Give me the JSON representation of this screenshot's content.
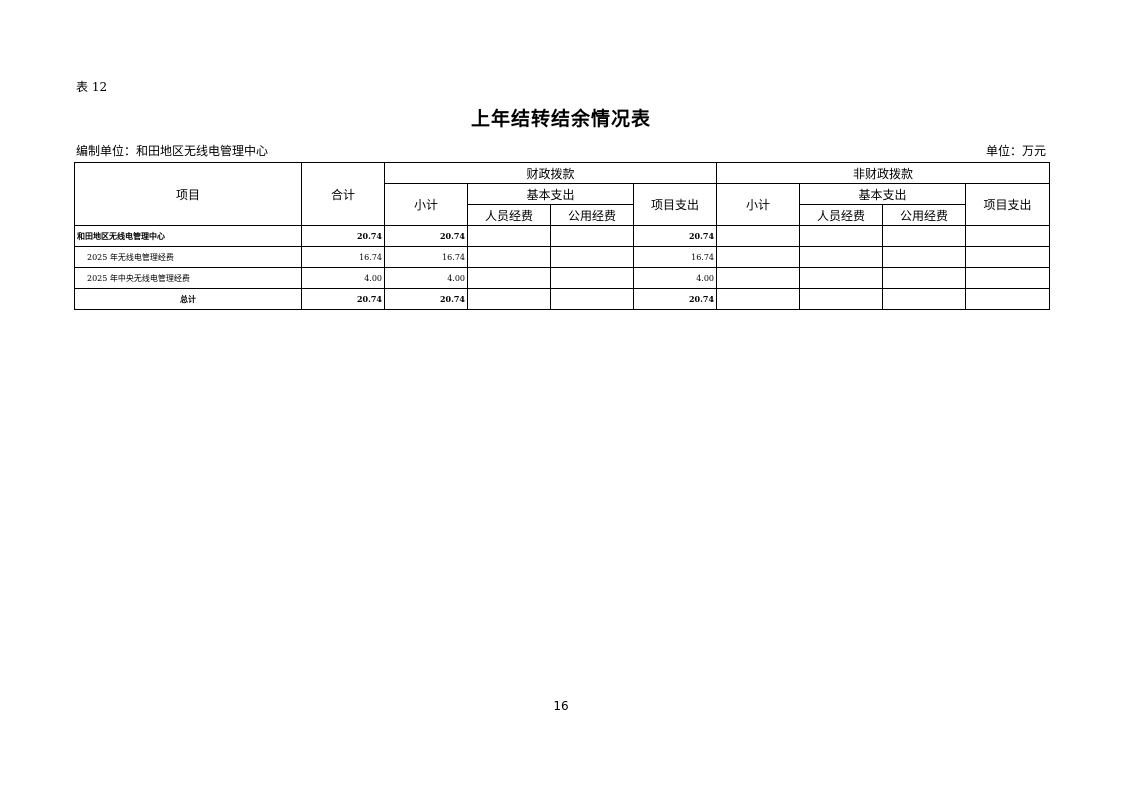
{
  "table_label": "表 12",
  "title": "上年结转结余情况表",
  "compiling_unit": "编制单位：和田地区无线电管理中心",
  "unit": "单位：万元",
  "headers": {
    "item": "项目",
    "total": "合计",
    "fiscal": "财政拨款",
    "non_fiscal": "非财政拨款",
    "subtotal": "小计",
    "basic": "基本支出",
    "personnel": "人员经费",
    "public": "公用经费",
    "project": "项目支出"
  },
  "rows": [
    {
      "name": "和田地区无线电管理中心",
      "total": "20.74",
      "f_sub": "20.74",
      "f_personnel": "",
      "f_public": "",
      "f_project": "20.74",
      "n_sub": "",
      "n_personnel": "",
      "n_public": "",
      "n_project": ""
    },
    {
      "name": "2025 年无线电管理经费",
      "total": "16.74",
      "f_sub": "16.74",
      "f_personnel": "",
      "f_public": "",
      "f_project": "16.74",
      "n_sub": "",
      "n_personnel": "",
      "n_public": "",
      "n_project": ""
    },
    {
      "name": "2025 年中央无线电管理经费",
      "total": "4.00",
      "f_sub": "4.00",
      "f_personnel": "",
      "f_public": "",
      "f_project": "4.00",
      "n_sub": "",
      "n_personnel": "",
      "n_public": "",
      "n_project": ""
    },
    {
      "name": "总计",
      "total": "20.74",
      "f_sub": "20.74",
      "f_personnel": "",
      "f_public": "",
      "f_project": "20.74",
      "n_sub": "",
      "n_personnel": "",
      "n_public": "",
      "n_project": ""
    }
  ],
  "page_number": "16"
}
